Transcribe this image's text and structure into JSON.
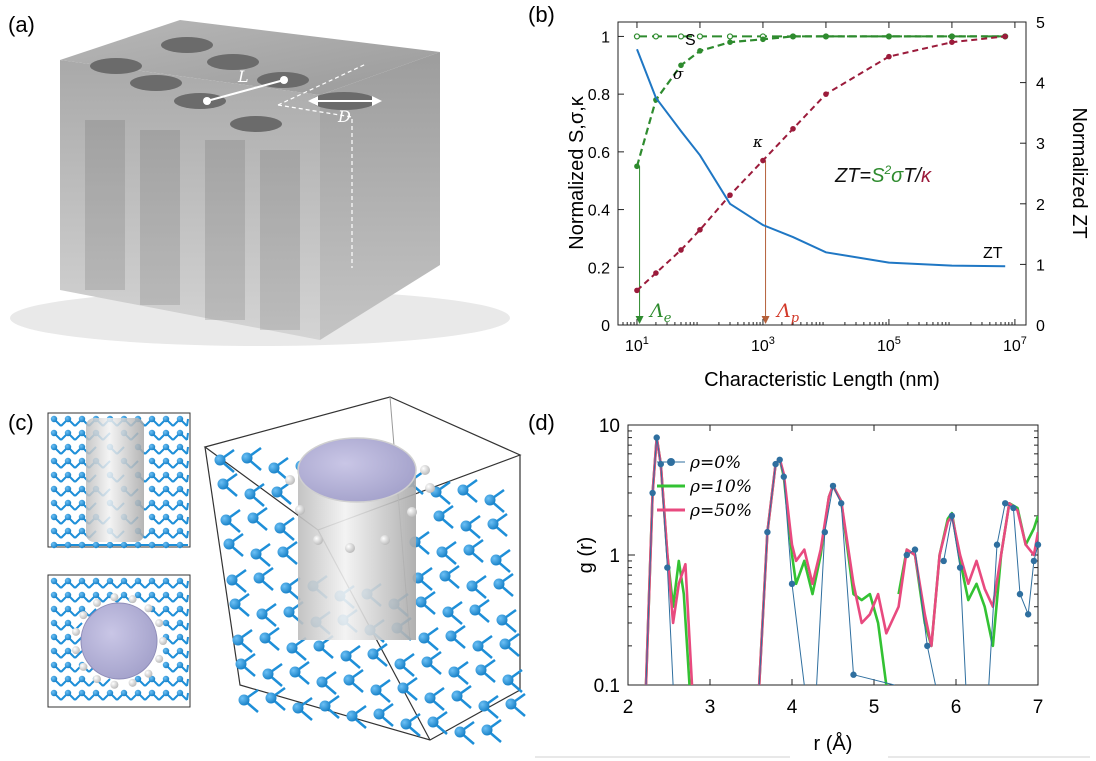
{
  "panels": {
    "a": "(a)",
    "b": "(b)",
    "c": "(c)",
    "d": "(d)"
  },
  "panel_a": {
    "label_L": "L",
    "label_D": "D"
  },
  "colors": {
    "S": "#2e8b2e",
    "sigma": "#2e8b2e",
    "kappa": "#9b1b3b",
    "ZT": "#1f77c4",
    "atom_blue": "#1e8fd8",
    "rho0": "#2f6f9f",
    "rho10": "#33c233",
    "rho50": "#e84a7f"
  },
  "chart_data": [
    {
      "type": "line",
      "panel": "b",
      "xlabel": "Characteristic Length (nm)",
      "ylabel_left": "Normalized S,σ,κ",
      "ylabel_right": "Normalized ZT",
      "xscale": "log",
      "xlim": [
        5,
        15000000
      ],
      "ylim_left": [
        0,
        1.05
      ],
      "ylim_right": [
        0,
        5
      ],
      "xticks": [
        "10^1",
        "10^3",
        "10^5",
        "10^7"
      ],
      "xtick_values": [
        10,
        1000,
        100000,
        10000000
      ],
      "yticks_left": [
        "0",
        "0.2",
        "0.4",
        "0.6",
        "0.8",
        "1"
      ],
      "yticks_right": [
        "0",
        "1",
        "2",
        "3",
        "4",
        "5"
      ],
      "formula": "ZT=S²σT/κ",
      "annotations": {
        "Lambda_e": "Λe",
        "Lambda_p": "Λp",
        "Lambda_e_x": 11,
        "Lambda_p_x": 1100
      },
      "series": [
        {
          "name": "S",
          "axis": "left",
          "x": [
            10,
            20,
            50,
            100,
            300,
            1000,
            3000,
            10000,
            100000,
            1000000,
            7000000
          ],
          "y": [
            1.0,
            1.0,
            1.0,
            1.0,
            1.0,
            1.0,
            1.0,
            1.0,
            1.0,
            1.0,
            1.0
          ]
        },
        {
          "name": "σ",
          "axis": "left",
          "x": [
            10,
            20,
            50,
            100,
            300,
            1000,
            3000,
            10000,
            100000,
            1000000,
            7000000
          ],
          "y": [
            0.55,
            0.78,
            0.9,
            0.95,
            0.98,
            0.99,
            1.0,
            1.0,
            1.0,
            1.0,
            1.0
          ]
        },
        {
          "name": "κ",
          "axis": "left",
          "x": [
            10,
            20,
            50,
            100,
            300,
            1000,
            3000,
            10000,
            100000,
            1000000,
            7000000
          ],
          "y": [
            0.12,
            0.18,
            0.26,
            0.33,
            0.45,
            0.57,
            0.68,
            0.8,
            0.93,
            0.98,
            1.0
          ]
        },
        {
          "name": "ZT",
          "axis": "right",
          "x": [
            10,
            20,
            50,
            100,
            300,
            1000,
            3000,
            10000,
            100000,
            1000000,
            7000000
          ],
          "y": [
            4.55,
            3.75,
            3.2,
            2.8,
            2.0,
            1.65,
            1.45,
            1.2,
            1.03,
            0.98,
            0.97
          ]
        }
      ]
    },
    {
      "type": "line",
      "panel": "d",
      "xlabel": "r (Å)",
      "ylabel": "g (r)",
      "yscale": "log",
      "xlim": [
        2,
        7
      ],
      "ylim": [
        0.1,
        10
      ],
      "xticks": [
        "2",
        "3",
        "4",
        "5",
        "6",
        "7"
      ],
      "yticks": [
        "0.1",
        "1",
        "10"
      ],
      "legend_placement": "top-left",
      "series": [
        {
          "name": "ρ=0%",
          "x": [
            2.22,
            2.3,
            2.35,
            2.4,
            2.48,
            2.55,
            3.6,
            3.7,
            3.8,
            3.85,
            3.9,
            4.0,
            4.15,
            4.3,
            4.4,
            4.5,
            4.6,
            4.75,
            5.25,
            5.4,
            5.5,
            5.65,
            5.75,
            5.85,
            5.95,
            6.05,
            6.12,
            6.4,
            6.5,
            6.6,
            6.7,
            6.78,
            6.88,
            6.95,
            7.0
          ],
          "y": [
            0.1,
            3.0,
            8.0,
            5.0,
            0.8,
            0.1,
            0.1,
            1.5,
            5.0,
            5.4,
            4.0,
            0.6,
            0.1,
            0.1,
            1.5,
            3.4,
            2.5,
            0.12,
            0.1,
            1.0,
            1.1,
            0.2,
            0.1,
            0.9,
            2.0,
            0.8,
            0.1,
            0.1,
            1.2,
            2.5,
            2.3,
            0.5,
            0.35,
            0.9,
            1.2
          ]
        },
        {
          "name": "ρ=10%",
          "x": [
            2.22,
            2.3,
            2.35,
            2.4,
            2.48,
            2.55,
            2.62,
            2.68,
            2.75,
            3.6,
            3.7,
            3.8,
            3.85,
            3.9,
            4.0,
            4.05,
            4.15,
            4.25,
            4.35,
            4.45,
            4.5,
            4.6,
            4.75,
            4.85,
            4.95,
            5.05,
            5.15,
            5.3,
            5.4,
            5.5,
            5.62,
            5.7,
            5.8,
            5.9,
            5.95,
            6.05,
            6.15,
            6.25,
            6.35,
            6.45,
            6.55,
            6.65,
            6.75,
            6.85,
            6.95,
            7.0
          ],
          "y": [
            0.1,
            3.0,
            8.0,
            5.0,
            1.0,
            0.4,
            0.9,
            0.5,
            0.1,
            0.1,
            1.5,
            5.0,
            5.5,
            4.0,
            1.0,
            0.6,
            0.9,
            0.5,
            1.0,
            2.8,
            3.4,
            2.6,
            0.5,
            0.45,
            0.5,
            0.3,
            0.1,
            0.5,
            1.1,
            1.0,
            0.3,
            0.2,
            1.0,
            1.9,
            2.1,
            0.9,
            0.45,
            0.6,
            0.4,
            0.2,
            1.0,
            2.5,
            2.3,
            1.2,
            1.6,
            2.0
          ]
        },
        {
          "name": "ρ=50%",
          "x": [
            2.22,
            2.3,
            2.35,
            2.4,
            2.48,
            2.55,
            2.62,
            2.7,
            2.78,
            3.6,
            3.7,
            3.8,
            3.85,
            3.9,
            4.0,
            4.05,
            4.15,
            4.25,
            4.35,
            4.45,
            4.5,
            4.6,
            4.75,
            4.85,
            4.95,
            5.05,
            5.15,
            5.3,
            5.4,
            5.5,
            5.62,
            5.7,
            5.8,
            5.9,
            5.95,
            6.05,
            6.15,
            6.25,
            6.35,
            6.45,
            6.55,
            6.65,
            6.75,
            6.85,
            6.95,
            7.0
          ],
          "y": [
            0.1,
            3.0,
            8.0,
            5.0,
            1.0,
            0.3,
            0.6,
            0.85,
            0.1,
            0.1,
            1.5,
            5.0,
            5.5,
            4.2,
            1.2,
            0.9,
            1.1,
            0.6,
            1.1,
            2.8,
            3.4,
            2.6,
            0.6,
            0.3,
            0.35,
            0.5,
            0.25,
            0.4,
            1.1,
            1.0,
            0.35,
            0.2,
            1.0,
            1.8,
            2.0,
            1.0,
            0.6,
            0.9,
            0.55,
            0.4,
            1.0,
            2.5,
            2.2,
            1.2,
            1.0,
            1.5
          ]
        }
      ]
    }
  ]
}
